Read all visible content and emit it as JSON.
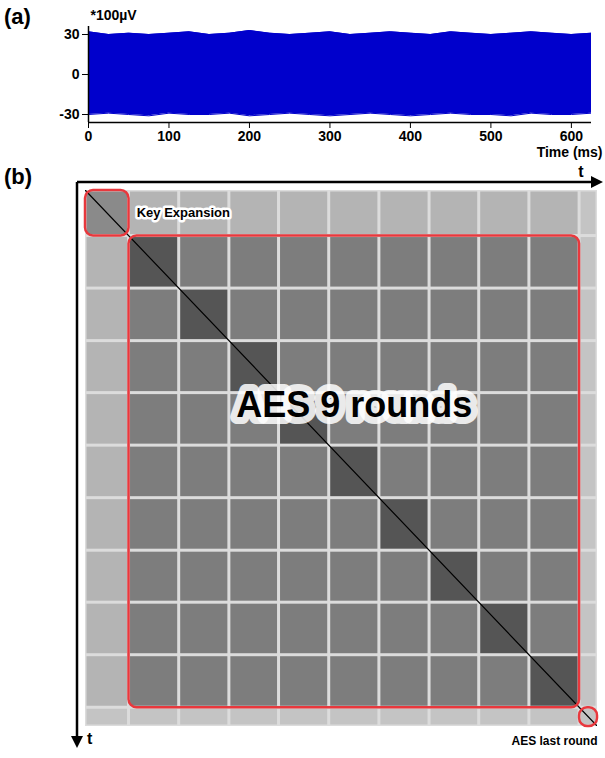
{
  "chart_data": [
    {
      "type": "band",
      "panel": "(a)",
      "y_label": "*100µV",
      "x_label": "Time (ms)",
      "color": "#0000cc",
      "x": [
        0,
        25,
        50,
        75,
        100,
        125,
        150,
        175,
        200,
        225,
        250,
        275,
        300,
        325,
        350,
        375,
        400,
        425,
        450,
        475,
        500,
        525,
        550,
        575,
        600,
        625
      ],
      "high": [
        32,
        30,
        31,
        30,
        31,
        32,
        30,
        31,
        33,
        31,
        30,
        31,
        32,
        30,
        31,
        32,
        31,
        30,
        32,
        31,
        30,
        31,
        32,
        31,
        30,
        31
      ],
      "low": [
        -30,
        -29,
        -30,
        -31,
        -29,
        -30,
        -30,
        -29,
        -31,
        -30,
        -29,
        -30,
        -31,
        -30,
        -29,
        -30,
        -31,
        -30,
        -29,
        -30,
        -30,
        -31,
        -29,
        -30,
        -30,
        -29
      ],
      "xlim": [
        0,
        625
      ],
      "xticks": [
        0,
        100,
        200,
        300,
        400,
        500,
        600
      ],
      "ylim": [
        -36,
        36
      ],
      "yticks": [
        -30,
        0,
        30
      ]
    },
    {
      "type": "matrix",
      "panel": "(b)",
      "axis_label": "t",
      "color": "#e8383d",
      "segments": {
        "key_expansion": [
          0,
          0.085
        ],
        "rounds": [
          0.085,
          0.183,
          0.281,
          0.378,
          0.476,
          0.574,
          0.672,
          0.769,
          0.867,
          0.965
        ],
        "last_round": [
          0.965,
          1.0
        ]
      },
      "labels": {
        "key_expansion": "Key Expansion",
        "rounds": "AES 9 rounds",
        "last_round": "AES last round"
      }
    }
  ]
}
